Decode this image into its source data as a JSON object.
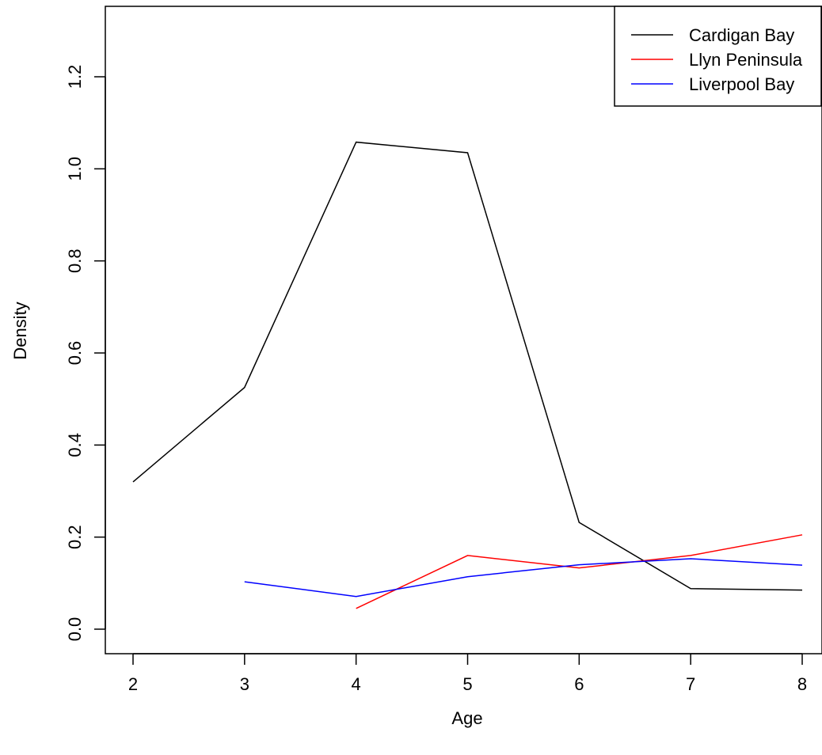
{
  "chart_data": {
    "type": "line",
    "title": "",
    "xlabel": "Age",
    "ylabel": "Density",
    "xlim": [
      2,
      8
    ],
    "ylim": [
      0,
      1.3
    ],
    "x_ticks": [
      2,
      3,
      4,
      5,
      6,
      7,
      8
    ],
    "y_ticks": [
      0.0,
      0.2,
      0.4,
      0.6,
      0.8,
      1.0,
      1.2
    ],
    "y_tick_labels": [
      "0.0",
      "0.2",
      "0.4",
      "0.6",
      "0.8",
      "1.0",
      "1.2"
    ],
    "grid": false,
    "legend_position": "top-right",
    "series": [
      {
        "name": "Cardigan Bay",
        "color": "#000000",
        "x": [
          2,
          3,
          4,
          5,
          6,
          7,
          8
        ],
        "values": [
          0.32,
          0.525,
          1.058,
          1.035,
          0.232,
          0.088,
          0.085
        ]
      },
      {
        "name": "Llyn Peninsula",
        "color": "#ff0000",
        "x": [
          4,
          5,
          6,
          7,
          8
        ],
        "values": [
          0.045,
          0.16,
          0.133,
          0.16,
          0.205
        ]
      },
      {
        "name": "Liverpool Bay",
        "color": "#0000ff",
        "x": [
          3,
          4,
          5,
          6,
          7,
          8
        ],
        "values": [
          0.103,
          0.071,
          0.114,
          0.14,
          0.153,
          0.139
        ]
      }
    ]
  }
}
